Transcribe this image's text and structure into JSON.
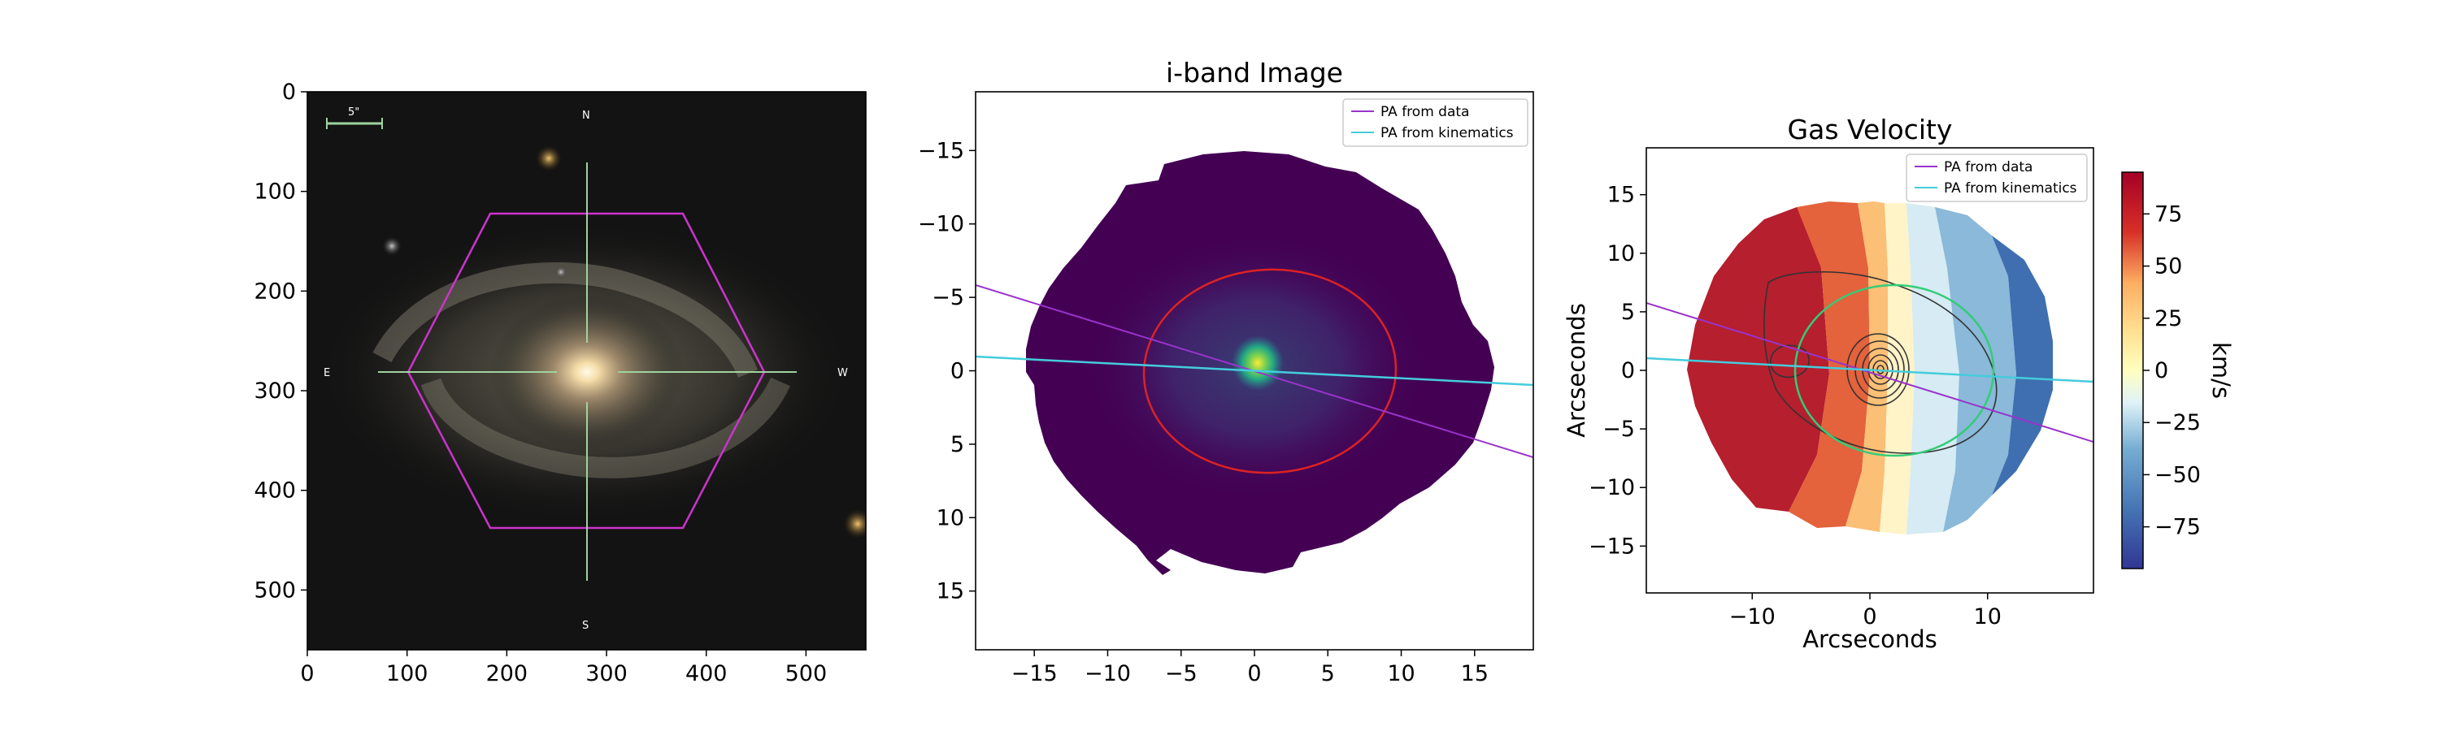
{
  "chart_data": [
    {
      "type": "image",
      "xlim": [
        0,
        560
      ],
      "ylim": [
        560,
        0
      ],
      "x_ticks": [
        "0",
        "100",
        "200",
        "300",
        "400",
        "500"
      ],
      "y_ticks": [
        "0",
        "100",
        "200",
        "300",
        "400",
        "500"
      ],
      "x_tick_values": [
        0,
        100,
        200,
        300,
        400,
        500
      ],
      "y_tick_values": [
        0,
        100,
        200,
        300,
        400,
        500
      ],
      "scale_bar_label": "5\"",
      "compass": {
        "north": "N",
        "south": "S",
        "east": "E",
        "west": "W"
      },
      "hexagon_color": "#cc33cc",
      "crosshair_color": "#9fd39f",
      "galaxy_center": [
        282,
        282
      ]
    },
    {
      "type": "heatmap",
      "title": "i-band Image",
      "xlim": [
        -19,
        19
      ],
      "ylim": [
        -19,
        19
      ],
      "y_inverted": true,
      "x_ticks": [
        "−15",
        "−10",
        "−5",
        "0",
        "5",
        "10",
        "15"
      ],
      "y_ticks": [
        "−15",
        "−10",
        "−5",
        "0",
        "5",
        "10",
        "15"
      ],
      "tick_values": [
        -15,
        -10,
        -5,
        0,
        5,
        10,
        15
      ],
      "colormap": "viridis",
      "ellipse_color": "#dd2222",
      "legend": [
        {
          "label": "PA from data",
          "color": "#9933cc"
        },
        {
          "label": "PA from kinematics",
          "color": "#44ccdd"
        }
      ],
      "pa_data_slope": -0.32,
      "pa_kin_slope": -0.05
    },
    {
      "type": "heatmap",
      "title": "Gas Velocity",
      "xlabel": "Arcseconds",
      "ylabel": "Arcseconds",
      "xlim": [
        -19,
        19
      ],
      "ylim": [
        -19,
        19
      ],
      "x_ticks": [
        "−10",
        "0",
        "10"
      ],
      "x_tick_values": [
        -10,
        0,
        10
      ],
      "y_ticks": [
        "15",
        "10",
        "5",
        "0",
        "−5",
        "−10",
        "−15"
      ],
      "y_tick_values": [
        15,
        10,
        5,
        0,
        -5,
        -10,
        -15
      ],
      "colormap": "RdBu_r",
      "colorbar": {
        "label": "km/s",
        "range": [
          -95,
          95
        ],
        "ticks": [
          "75",
          "50",
          "25",
          "0",
          "−25",
          "−50",
          "−75"
        ],
        "tick_values": [
          75,
          50,
          25,
          0,
          -25,
          -50,
          -75
        ]
      },
      "ellipse_color": "#33cc77",
      "legend": [
        {
          "label": "PA from data",
          "color": "#9933cc"
        },
        {
          "label": "PA from kinematics",
          "color": "#44ccdd"
        }
      ]
    }
  ]
}
